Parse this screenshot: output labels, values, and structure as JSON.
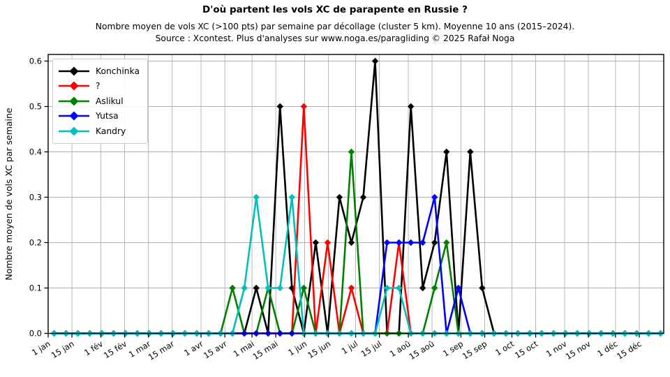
{
  "title": "D'où partent les vols XC de parapente en Russie ?",
  "subtitle_line1": "Nombre moyen de vols XC (>100 pts) par semaine par décollage (cluster 5 km). Moyenne 10 ans (2015–2024).",
  "subtitle_line2": "Source : Xcontest. Plus d'analyses sur www.noga.es/paragliding © 2025 Rafał Noga",
  "chart_data": {
    "type": "line",
    "title": "D'où partent les vols XC de parapente en Russie ?",
    "xlabel": "",
    "ylabel": "Nombre moyen de vols XC par semaine",
    "ylim": [
      0,
      0.615
    ],
    "grid": true,
    "legend_position": "upper left",
    "marker": "diamond",
    "x_unit": "week of year (52 weekly points)",
    "y_ticks": [
      0.0,
      0.1,
      0.2,
      0.3,
      0.4,
      0.5,
      0.6
    ],
    "x_ticks": [
      {
        "label": "1 jan",
        "day": 0
      },
      {
        "label": "15 jan",
        "day": 14
      },
      {
        "label": "1 fév",
        "day": 31
      },
      {
        "label": "15 fév",
        "day": 45
      },
      {
        "label": "1 mar",
        "day": 59
      },
      {
        "label": "15 mar",
        "day": 73
      },
      {
        "label": "1 avr",
        "day": 90
      },
      {
        "label": "15 avr",
        "day": 104
      },
      {
        "label": "1 mai",
        "day": 120
      },
      {
        "label": "15 mai",
        "day": 134
      },
      {
        "label": "1 jun",
        "day": 151
      },
      {
        "label": "15 jun",
        "day": 165
      },
      {
        "label": "1 jul",
        "day": 181
      },
      {
        "label": "15 jul",
        "day": 195
      },
      {
        "label": "1 aoû",
        "day": 212
      },
      {
        "label": "15 aoû",
        "day": 226
      },
      {
        "label": "1 sep",
        "day": 243
      },
      {
        "label": "15 sep",
        "day": 257
      },
      {
        "label": "1 oct",
        "day": 273
      },
      {
        "label": "15 oct",
        "day": 287
      },
      {
        "label": "1 nov",
        "day": 304
      },
      {
        "label": "15 nov",
        "day": 318
      },
      {
        "label": "1 déc",
        "day": 334
      },
      {
        "label": "15 déc",
        "day": 348
      }
    ],
    "series": [
      {
        "name": "Konchinka",
        "color": "#000000",
        "values": [
          0,
          0,
          0,
          0,
          0,
          0,
          0,
          0,
          0,
          0,
          0,
          0,
          0,
          0,
          0,
          0,
          0,
          0.1,
          0,
          0.5,
          0.1,
          0,
          0.2,
          0,
          0.3,
          0.2,
          0.3,
          0.6,
          0,
          0,
          0.5,
          0.1,
          0.2,
          0.4,
          0,
          0.4,
          0.1,
          0,
          0,
          0,
          0,
          0,
          0,
          0,
          0,
          0,
          0,
          0,
          0,
          0,
          0,
          0
        ]
      },
      {
        "name": "?",
        "color": "#ff0000",
        "values": [
          0,
          0,
          0,
          0,
          0,
          0,
          0,
          0,
          0,
          0,
          0,
          0,
          0,
          0,
          0,
          0,
          0,
          0,
          0,
          0,
          0,
          0.5,
          0,
          0.2,
          0,
          0.1,
          0,
          0,
          0,
          0.2,
          0,
          0,
          0,
          0,
          0,
          0,
          0,
          0,
          0,
          0,
          0,
          0,
          0,
          0,
          0,
          0,
          0,
          0,
          0,
          0,
          0,
          0
        ]
      },
      {
        "name": "Aslikul",
        "color": "#008000",
        "values": [
          0,
          0,
          0,
          0,
          0,
          0,
          0,
          0,
          0,
          0,
          0,
          0,
          0,
          0,
          0,
          0.1,
          0,
          0,
          0.1,
          0,
          0,
          0.1,
          0,
          0,
          0,
          0.4,
          0,
          0,
          0,
          0,
          0,
          0,
          0.1,
          0.2,
          0,
          0,
          0,
          0,
          0,
          0,
          0,
          0,
          0,
          0,
          0,
          0,
          0,
          0,
          0,
          0,
          0,
          0
        ]
      },
      {
        "name": "Yutsa",
        "color": "#0000ff",
        "values": [
          0,
          0,
          0,
          0,
          0,
          0,
          0,
          0,
          0,
          0,
          0,
          0,
          0,
          0,
          0,
          0,
          0,
          0,
          0,
          0,
          0,
          0,
          0,
          0,
          0,
          0,
          0,
          0,
          0.2,
          0.2,
          0.2,
          0.2,
          0.3,
          0,
          0.1,
          0,
          0,
          0,
          0,
          0,
          0,
          0,
          0,
          0,
          0,
          0,
          0,
          0,
          0,
          0,
          0,
          0
        ]
      },
      {
        "name": "Kandry",
        "color": "#00bfbf",
        "values": [
          0,
          0,
          0,
          0,
          0,
          0,
          0,
          0,
          0,
          0,
          0,
          0,
          0,
          0,
          0,
          0,
          0.1,
          0.3,
          0.1,
          0.1,
          0.3,
          0,
          0,
          0,
          0,
          0,
          0,
          0,
          0.1,
          0.1,
          0,
          0,
          0,
          0,
          0,
          0,
          0,
          0,
          0,
          0,
          0,
          0,
          0,
          0,
          0,
          0,
          0,
          0,
          0,
          0,
          0,
          0
        ]
      }
    ]
  }
}
